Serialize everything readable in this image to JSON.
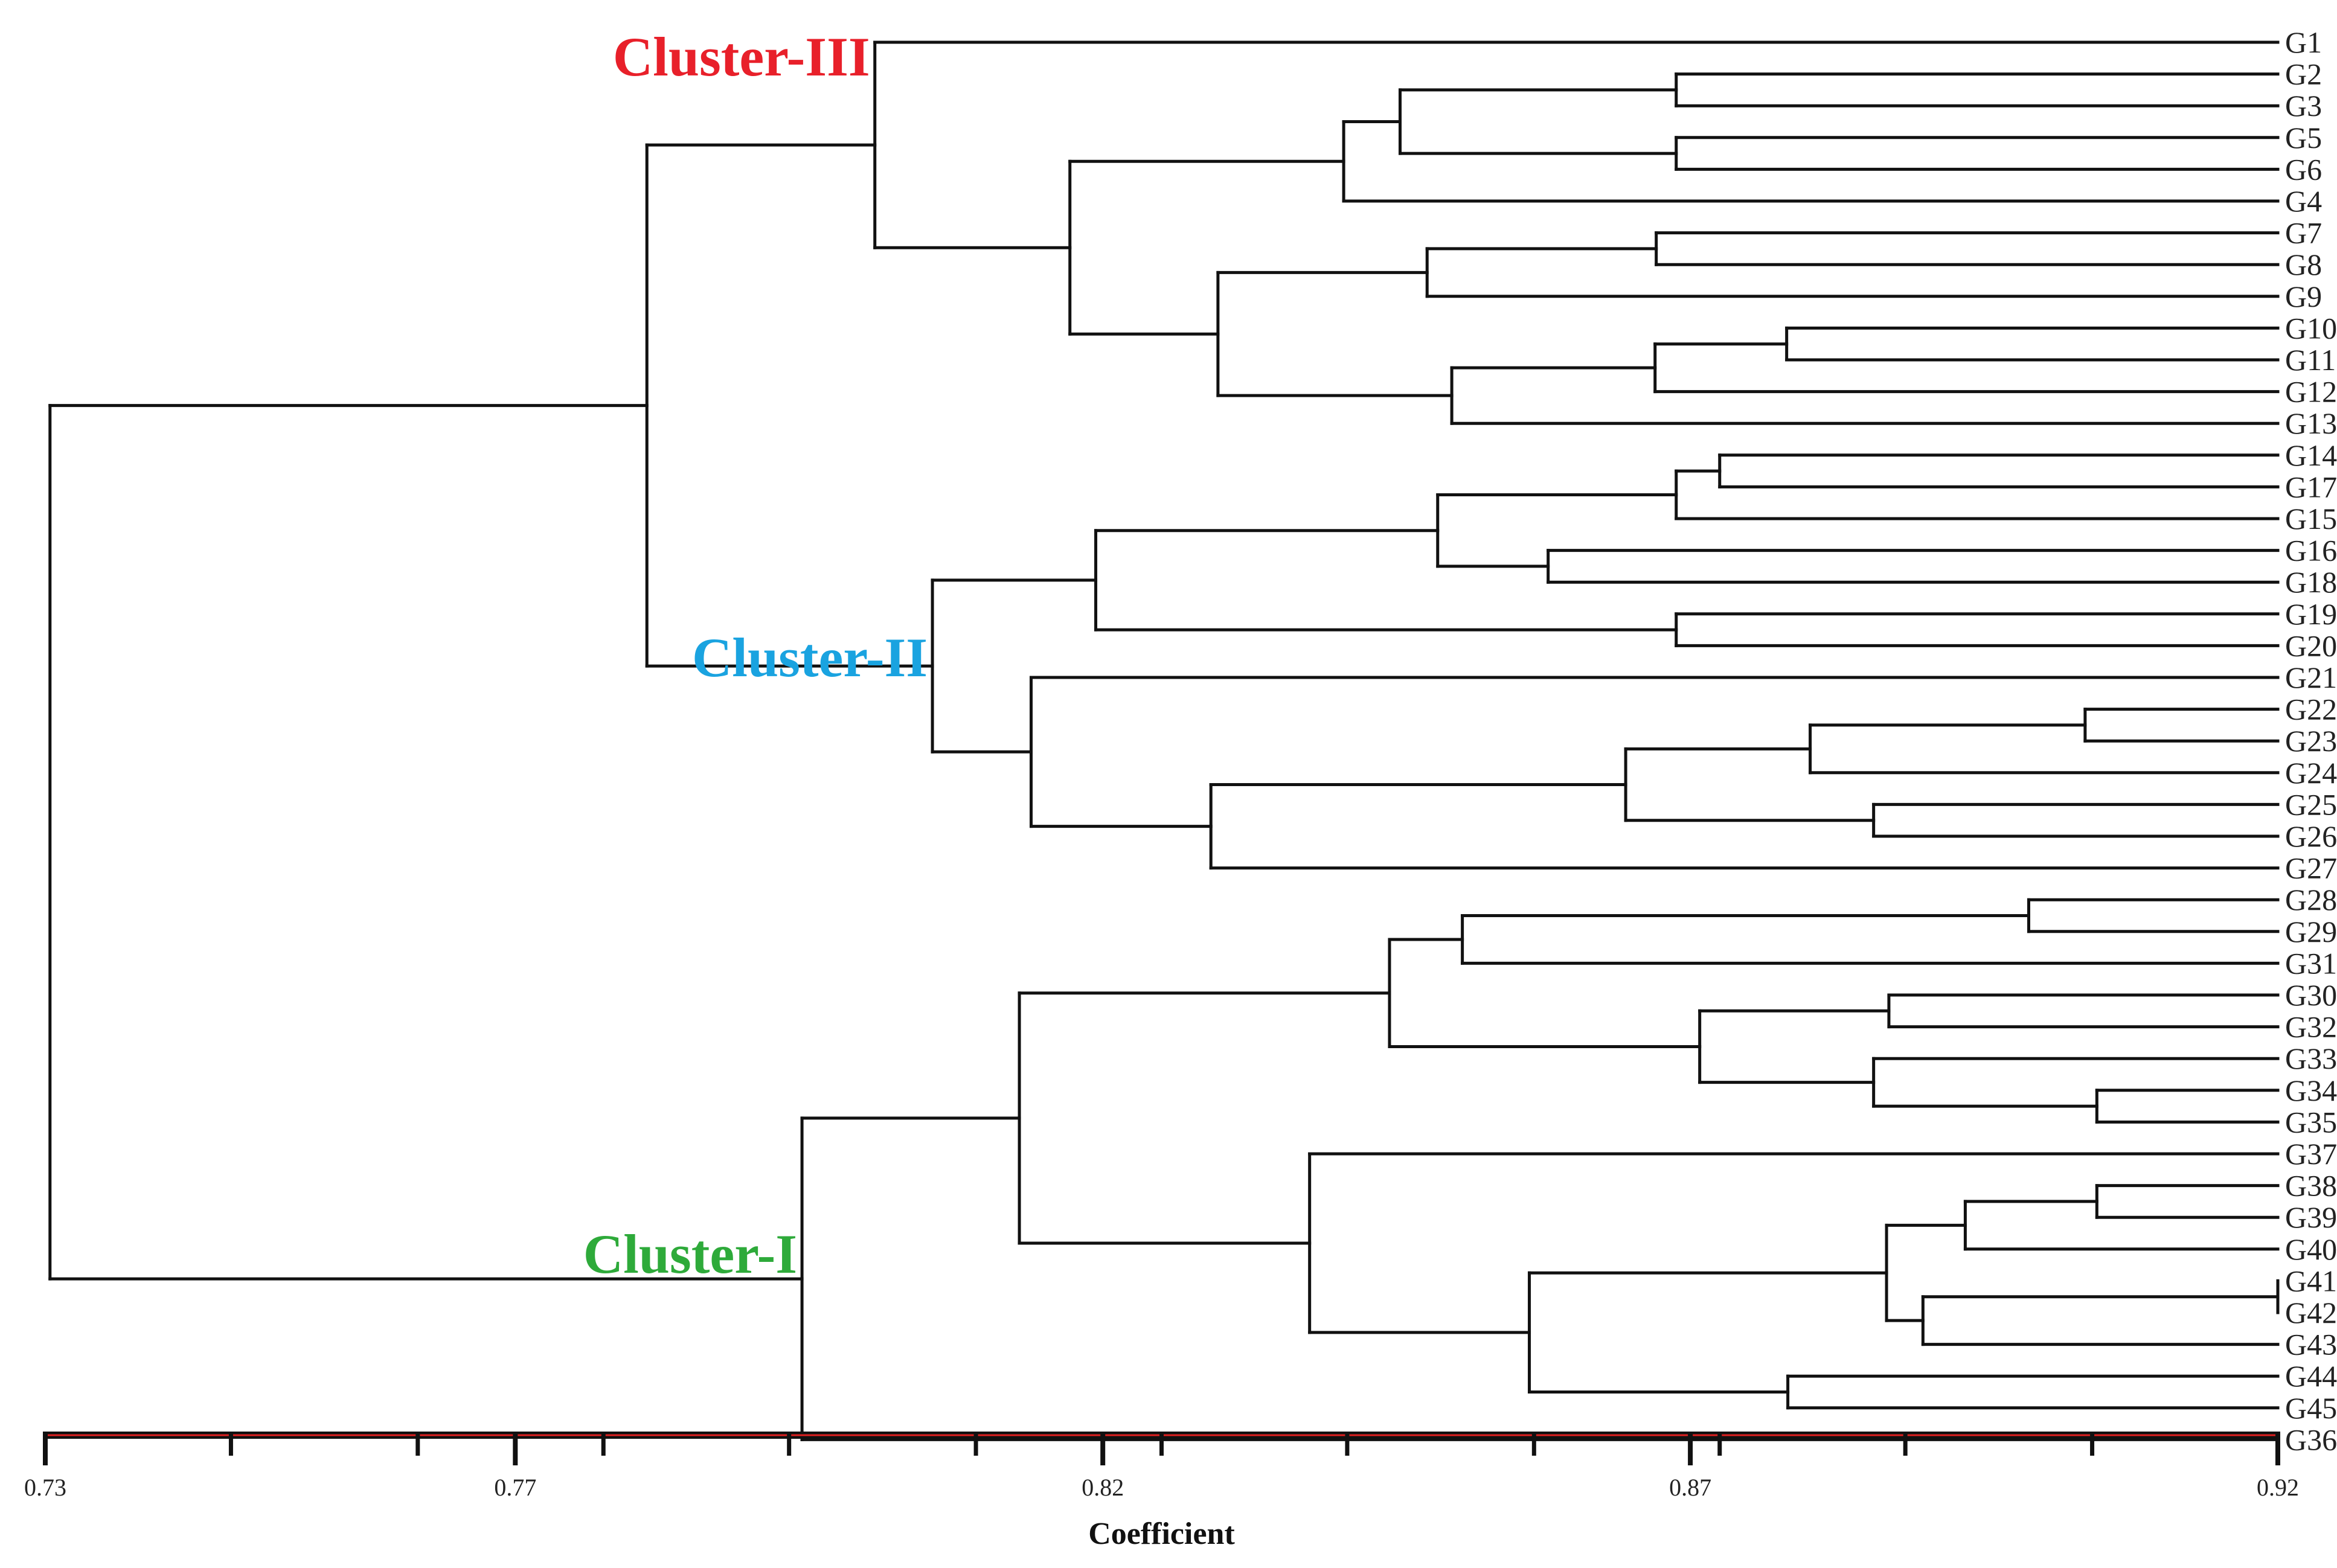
{
  "chart_data": {
    "type": "dendrogram",
    "xlabel": "Coefficient",
    "xlim": [
      0.73,
      0.92
    ],
    "tick_labels": [
      {
        "value": 0.73,
        "label": "0.73"
      },
      {
        "value": 0.77,
        "label": "0.77"
      },
      {
        "value": 0.82,
        "label": "0.82"
      },
      {
        "value": 0.87,
        "label": "0.87"
      },
      {
        "value": 0.92,
        "label": "0.92"
      }
    ],
    "minor_ticks": [
      0.7458,
      0.7617,
      0.7775,
      0.7933,
      0.8092,
      0.825,
      0.8408,
      0.8567,
      0.8725,
      0.8883,
      0.9042
    ],
    "axis_colors": {
      "bar": "#111111",
      "stripe": "#e02020"
    },
    "leaves": [
      "G1",
      "G2",
      "G3",
      "G5",
      "G6",
      "G4",
      "G7",
      "G8",
      "G9",
      "G10",
      "G11",
      "G12",
      "G13",
      "G14",
      "G17",
      "G15",
      "G16",
      "G18",
      "G19",
      "G20",
      "G21",
      "G22",
      "G23",
      "G24",
      "G25",
      "G26",
      "G27",
      "G28",
      "G29",
      "G31",
      "G30",
      "G32",
      "G33",
      "G34",
      "G35",
      "G37",
      "G38",
      "G39",
      "G40",
      "G41",
      "G42",
      "G43",
      "G44",
      "G45",
      "G36"
    ],
    "merges": [
      {
        "id": "m_2_3",
        "height": 0.8688,
        "children": [
          "G2",
          "G3"
        ]
      },
      {
        "id": "m_5_6",
        "height": 0.8688,
        "children": [
          "G5",
          "G6"
        ]
      },
      {
        "id": "m_2356",
        "height": 0.8453,
        "children": [
          "m_2_3",
          "m_5_6"
        ]
      },
      {
        "id": "m_23564",
        "height": 0.8405,
        "children": [
          "m_2356",
          "G4"
        ]
      },
      {
        "id": "m_7_8",
        "height": 0.8671,
        "children": [
          "G7",
          "G8"
        ]
      },
      {
        "id": "m_789",
        "height": 0.8476,
        "children": [
          "m_7_8",
          "G9"
        ]
      },
      {
        "id": "m_10_11",
        "height": 0.8782,
        "children": [
          "G10",
          "G11"
        ]
      },
      {
        "id": "m_101112",
        "height": 0.867,
        "children": [
          "m_10_11",
          "G12"
        ]
      },
      {
        "id": "m_10to13",
        "height": 0.8497,
        "children": [
          "m_101112",
          "G13"
        ]
      },
      {
        "id": "m_7to13",
        "height": 0.8298,
        "children": [
          "m_789",
          "m_10to13"
        ]
      },
      {
        "id": "m_2to13",
        "height": 0.8172,
        "children": [
          "m_23564",
          "m_7to13"
        ]
      },
      {
        "id": "m_clusterIII",
        "height": 0.8006,
        "children": [
          "G1",
          "m_2to13"
        ]
      },
      {
        "id": "m_14_17",
        "height": 0.8725,
        "children": [
          "G14",
          "G17"
        ]
      },
      {
        "id": "m_141715",
        "height": 0.8688,
        "children": [
          "m_14_17",
          "G15"
        ]
      },
      {
        "id": "m_16_18",
        "height": 0.8579,
        "children": [
          "G16",
          "G18"
        ]
      },
      {
        "id": "m_14to18",
        "height": 0.8485,
        "children": [
          "m_141715",
          "m_16_18"
        ]
      },
      {
        "id": "m_19_20",
        "height": 0.8688,
        "children": [
          "G19",
          "G20"
        ]
      },
      {
        "id": "m_14to20",
        "height": 0.8194,
        "children": [
          "m_14to18",
          "m_19_20"
        ]
      },
      {
        "id": "m_22_23",
        "height": 0.9036,
        "children": [
          "G22",
          "G23"
        ]
      },
      {
        "id": "m_222324",
        "height": 0.8802,
        "children": [
          "m_22_23",
          "G24"
        ]
      },
      {
        "id": "m_25_26",
        "height": 0.8856,
        "children": [
          "G25",
          "G26"
        ]
      },
      {
        "id": "m_22to26",
        "height": 0.8645,
        "children": [
          "m_222324",
          "m_25_26"
        ]
      },
      {
        "id": "m_22to27",
        "height": 0.8292,
        "children": [
          "m_22to26",
          "G27"
        ]
      },
      {
        "id": "m_21to27",
        "height": 0.8139,
        "children": [
          "G21",
          "m_22to27"
        ]
      },
      {
        "id": "m_clusterII",
        "height": 0.8055,
        "children": [
          "m_14to20",
          "m_21to27"
        ]
      },
      {
        "id": "m_II_III",
        "height": 0.7812,
        "children": [
          "m_clusterIII",
          "m_clusterII"
        ]
      },
      {
        "id": "m_28_29",
        "height": 0.8988,
        "children": [
          "G28",
          "G29"
        ]
      },
      {
        "id": "m_282931",
        "height": 0.8506,
        "children": [
          "m_28_29",
          "G31"
        ]
      },
      {
        "id": "m_30_32",
        "height": 0.8869,
        "children": [
          "G30",
          "G32"
        ]
      },
      {
        "id": "m_34_35",
        "height": 0.9046,
        "children": [
          "G34",
          "G35"
        ]
      },
      {
        "id": "m_333435",
        "height": 0.8856,
        "children": [
          "G33",
          "m_34_35"
        ]
      },
      {
        "id": "m_30to35",
        "height": 0.8708,
        "children": [
          "m_30_32",
          "m_333435"
        ]
      },
      {
        "id": "m_28to35",
        "height": 0.8444,
        "children": [
          "m_282931",
          "m_30to35"
        ]
      },
      {
        "id": "m_38_39",
        "height": 0.9046,
        "children": [
          "G38",
          "G39"
        ]
      },
      {
        "id": "m_383940",
        "height": 0.8934,
        "children": [
          "m_38_39",
          "G40"
        ]
      },
      {
        "id": "m_41_42",
        "height": 0.92,
        "children": [
          "G41",
          "G42"
        ]
      },
      {
        "id": "m_414243",
        "height": 0.8898,
        "children": [
          "m_41_42",
          "G43"
        ]
      },
      {
        "id": "m_38to43",
        "height": 0.8867,
        "children": [
          "m_383940",
          "m_414243"
        ]
      },
      {
        "id": "m_44_45",
        "height": 0.8783,
        "children": [
          "G44",
          "G45"
        ]
      },
      {
        "id": "m_38to45",
        "height": 0.8563,
        "children": [
          "m_38to43",
          "m_44_45"
        ]
      },
      {
        "id": "m_37to45",
        "height": 0.8376,
        "children": [
          "G37",
          "m_38to45"
        ]
      },
      {
        "id": "m_28to45",
        "height": 0.8129,
        "children": [
          "m_28to35",
          "m_37to45"
        ]
      },
      {
        "id": "m_clusterI",
        "height": 0.7944,
        "children": [
          "m_28to45",
          "G36"
        ]
      },
      {
        "id": "m_root",
        "height": 0.7304,
        "children": [
          "m_II_III",
          "m_clusterI"
        ]
      }
    ],
    "clusters": [
      {
        "name": "Cluster-III",
        "color": "#e8202a",
        "node": "m_clusterIII"
      },
      {
        "name": "Cluster-II",
        "color": "#1aa3e0",
        "node": "m_clusterII"
      },
      {
        "name": "Cluster-I",
        "color": "#2eaa3a",
        "node": "m_clusterI"
      }
    ]
  }
}
